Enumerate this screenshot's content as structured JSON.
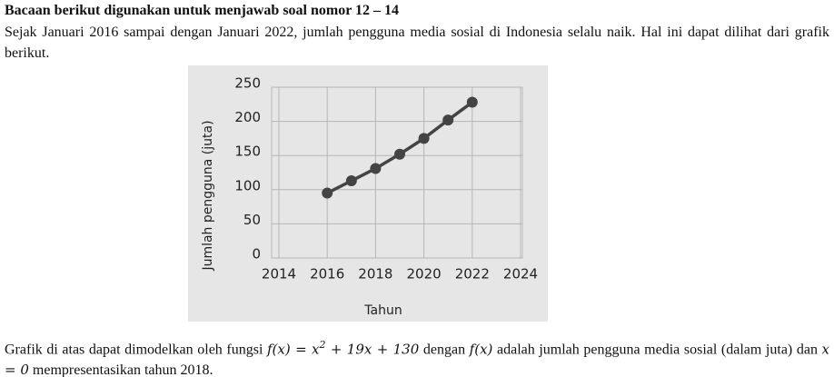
{
  "heading": "Bacaan berikut digunakan untuk menjawab soal nomor 12 – 14",
  "paragraph1": "Sejak Januari 2016 sampai dengan Januari 2022, jumlah pengguna media sosial di Indonesia selalu naik. Hal ini dapat dilihat dari grafik berikut.",
  "chart_data": {
    "type": "line",
    "x_label": "Tahun",
    "y_label": "Jumlah pengguna (juta)",
    "x": [
      2016,
      2017,
      2018,
      2019,
      2020,
      2021,
      2022
    ],
    "series": [
      {
        "name": "Jumlah pengguna",
        "color": "#444444",
        "values": [
          95,
          113,
          131,
          152,
          175,
          202,
          228
        ]
      }
    ],
    "xlim": [
      2014,
      2024
    ],
    "xticks": [
      2014,
      2016,
      2018,
      2020,
      2022,
      2024
    ],
    "ylim": [
      0,
      250
    ],
    "yticks": [
      0,
      50,
      100,
      150,
      200,
      250
    ],
    "grid": true
  },
  "paragraph2": [
    "Grafik di atas dapat dimodelkan oleh fungsi ",
    "f(x) = x",
    "2",
    " + 19x + 130",
    " dengan ",
    "f(x)",
    " adalah jumlah pengguna media sosial (dalam juta) dan ",
    "x = 0",
    " mempresentasikan tahun 2018."
  ]
}
